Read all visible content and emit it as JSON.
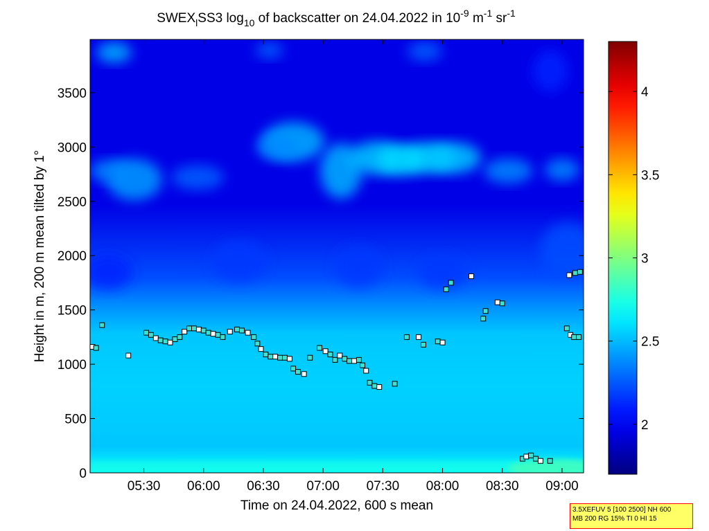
{
  "chart_data": {
    "type": "heatmap",
    "title_parts": {
      "prefix": "SWEX",
      "sub1": "l",
      "middle": "SS3 log",
      "sub2": "10",
      "after": " of backscatter on 24.04.2022 in 10",
      "sup1": "-9",
      "unit1": " m",
      "sup2": "-1",
      "unit2": " sr",
      "sup3": "-1"
    },
    "xlabel": "Time on 24.04.2022, 600 s mean",
    "ylabel": "Height in m, 200 m mean tilted by 1°",
    "x_ticks": [
      {
        "hour": 5.5,
        "label": "05:30"
      },
      {
        "hour": 6.0,
        "label": "06:00"
      },
      {
        "hour": 6.5,
        "label": "06:30"
      },
      {
        "hour": 7.0,
        "label": "07:00"
      },
      {
        "hour": 7.5,
        "label": "07:30"
      },
      {
        "hour": 8.0,
        "label": "08:00"
      },
      {
        "hour": 8.5,
        "label": "08:30"
      },
      {
        "hour": 9.0,
        "label": "09:00"
      }
    ],
    "y_ticks": [
      0,
      500,
      1000,
      1500,
      2000,
      2500,
      3000,
      3500
    ],
    "xlim_hours": [
      5.05,
      9.18
    ],
    "ylim": [
      0,
      3990
    ],
    "colorbar": {
      "ticks": [
        {
          "value": 2,
          "label": "2"
        },
        {
          "value": 2.5,
          "label": "2.5"
        },
        {
          "value": 3,
          "label": "3"
        },
        {
          "value": 3.5,
          "label": "3.5"
        },
        {
          "value": 4,
          "label": "4"
        }
      ],
      "range": [
        1.7,
        4.3
      ],
      "colormap": "jet"
    },
    "detected_layer_points": [
      {
        "time": 5.07,
        "height": 1160
      },
      {
        "time": 5.1,
        "height": 1150
      },
      {
        "time": 5.15,
        "height": 1360
      },
      {
        "time": 5.37,
        "height": 1080
      },
      {
        "time": 5.52,
        "height": 1290
      },
      {
        "time": 5.56,
        "height": 1270
      },
      {
        "time": 5.6,
        "height": 1240
      },
      {
        "time": 5.64,
        "height": 1220
      },
      {
        "time": 5.68,
        "height": 1210
      },
      {
        "time": 5.72,
        "height": 1200
      },
      {
        "time": 5.76,
        "height": 1230
      },
      {
        "time": 5.8,
        "height": 1250
      },
      {
        "time": 5.84,
        "height": 1300
      },
      {
        "time": 5.88,
        "height": 1330
      },
      {
        "time": 5.92,
        "height": 1330
      },
      {
        "time": 5.96,
        "height": 1320
      },
      {
        "time": 6.0,
        "height": 1310
      },
      {
        "time": 6.04,
        "height": 1290
      },
      {
        "time": 6.08,
        "height": 1280
      },
      {
        "time": 6.12,
        "height": 1270
      },
      {
        "time": 6.16,
        "height": 1250
      },
      {
        "time": 6.22,
        "height": 1300
      },
      {
        "time": 6.28,
        "height": 1320
      },
      {
        "time": 6.32,
        "height": 1310
      },
      {
        "time": 6.37,
        "height": 1290
      },
      {
        "time": 6.42,
        "height": 1250
      },
      {
        "time": 6.45,
        "height": 1190
      },
      {
        "time": 6.48,
        "height": 1140
      },
      {
        "time": 6.52,
        "height": 1090
      },
      {
        "time": 6.56,
        "height": 1070
      },
      {
        "time": 6.6,
        "height": 1070
      },
      {
        "time": 6.64,
        "height": 1060
      },
      {
        "time": 6.68,
        "height": 1060
      },
      {
        "time": 6.72,
        "height": 1050
      },
      {
        "time": 6.75,
        "height": 960
      },
      {
        "time": 6.79,
        "height": 930
      },
      {
        "time": 6.84,
        "height": 910
      },
      {
        "time": 6.89,
        "height": 1060
      },
      {
        "time": 6.97,
        "height": 1150
      },
      {
        "time": 7.02,
        "height": 1120
      },
      {
        "time": 7.06,
        "height": 1090
      },
      {
        "time": 7.1,
        "height": 1040
      },
      {
        "time": 7.14,
        "height": 1080
      },
      {
        "time": 7.18,
        "height": 1050
      },
      {
        "time": 7.22,
        "height": 1030
      },
      {
        "time": 7.26,
        "height": 1030
      },
      {
        "time": 7.3,
        "height": 1040
      },
      {
        "time": 7.33,
        "height": 990
      },
      {
        "time": 7.36,
        "height": 940
      },
      {
        "time": 7.39,
        "height": 830
      },
      {
        "time": 7.43,
        "height": 800
      },
      {
        "time": 7.47,
        "height": 790
      },
      {
        "time": 7.6,
        "height": 820
      },
      {
        "time": 7.7,
        "height": 1250
      },
      {
        "time": 7.8,
        "height": 1250
      },
      {
        "time": 7.84,
        "height": 1180
      },
      {
        "time": 7.96,
        "height": 1210
      },
      {
        "time": 8.0,
        "height": 1200
      },
      {
        "time": 8.03,
        "height": 1690
      },
      {
        "time": 8.07,
        "height": 1750
      },
      {
        "time": 8.24,
        "height": 1810
      },
      {
        "time": 8.34,
        "height": 1420
      },
      {
        "time": 8.36,
        "height": 1490
      },
      {
        "time": 8.46,
        "height": 1570
      },
      {
        "time": 8.5,
        "height": 1560
      },
      {
        "time": 8.67,
        "height": 130
      },
      {
        "time": 8.7,
        "height": 150
      },
      {
        "time": 8.74,
        "height": 160
      },
      {
        "time": 8.78,
        "height": 130
      },
      {
        "time": 8.82,
        "height": 110
      },
      {
        "time": 8.9,
        "height": 110
      },
      {
        "time": 9.04,
        "height": 1330
      },
      {
        "time": 9.07,
        "height": 1270
      },
      {
        "time": 9.1,
        "height": 1250
      },
      {
        "time": 9.14,
        "height": 1250
      },
      {
        "time": 9.06,
        "height": 1820
      },
      {
        "time": 9.11,
        "height": 1840
      },
      {
        "time": 9.15,
        "height": 1850
      }
    ]
  },
  "info_box": {
    "line1": "3.5XEFUV 5 [100 2500] NH 600",
    "line2": "MB 200 RG 15% TI 0 HI 15"
  }
}
